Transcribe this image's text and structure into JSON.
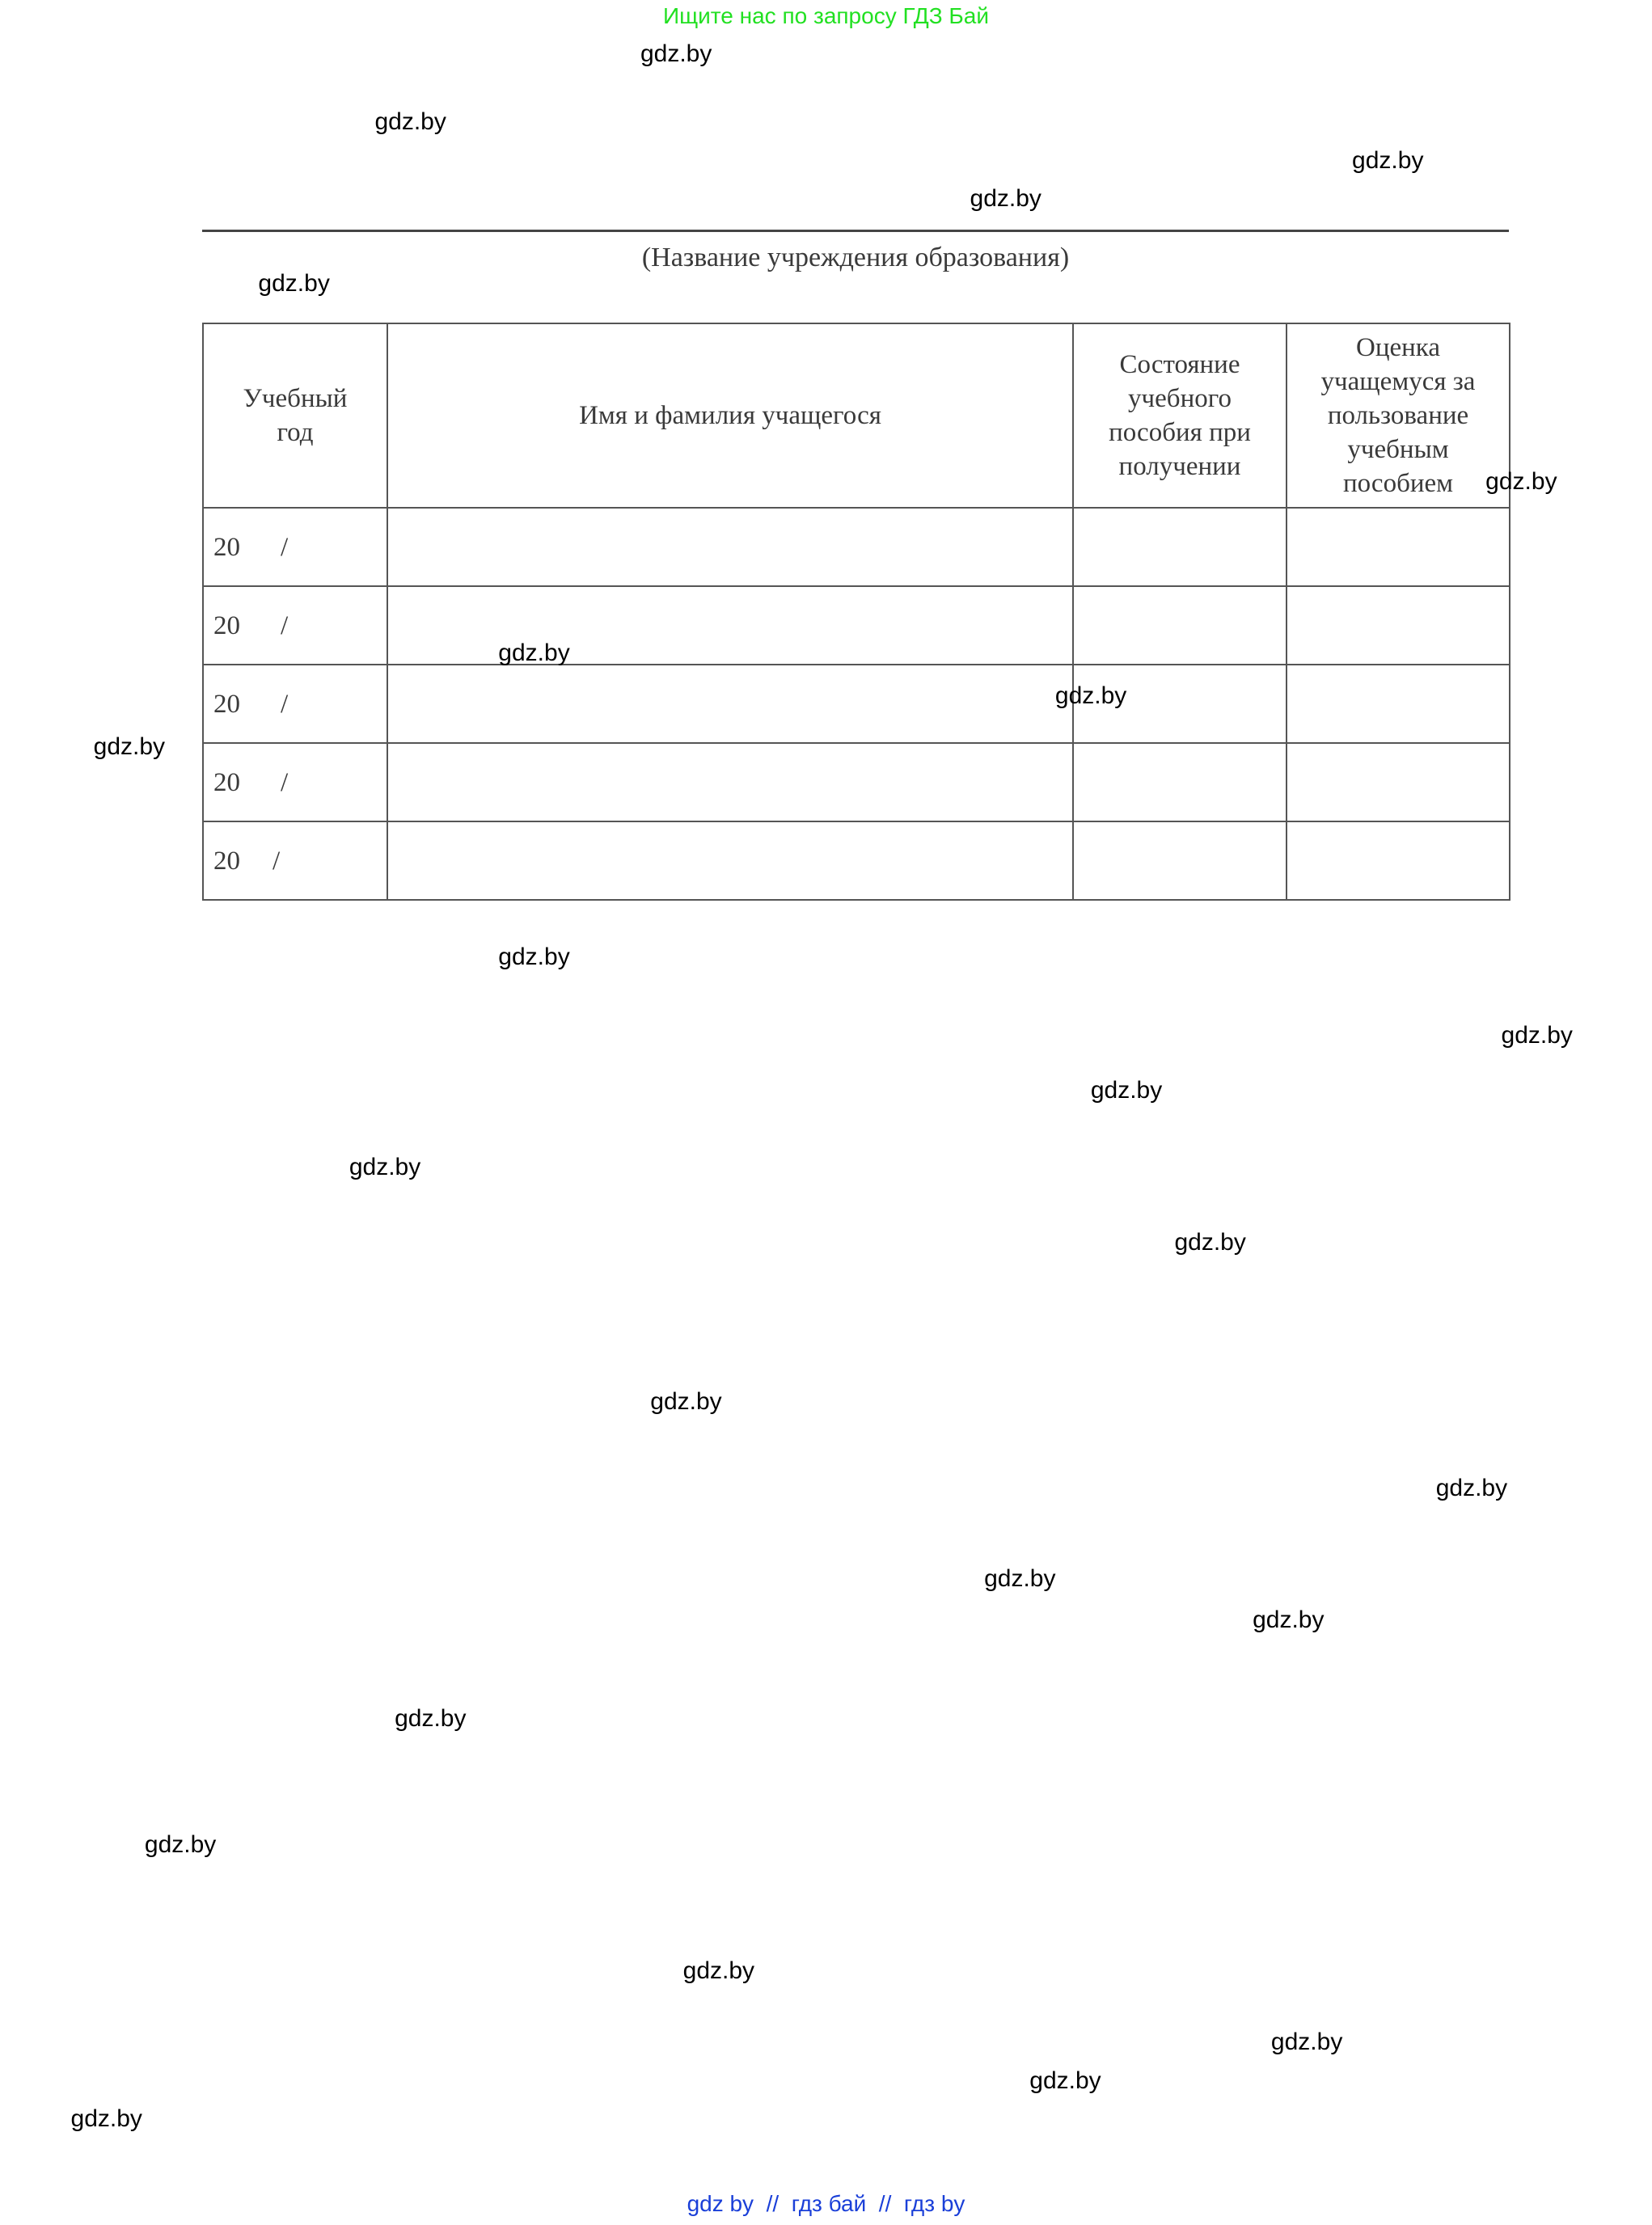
{
  "banner": "Ищите нас по запросу ГДЗ Бай",
  "caption": "(Название учреждения образования)",
  "table": {
    "headers": [
      "Учебный год",
      "Имя и фамилия учащегося",
      "Состояние учебного пособия при получении",
      "Оценка учащемуся за пользование учебным пособием"
    ],
    "rows": [
      {
        "year": "20",
        "slash": "/"
      },
      {
        "year": "20",
        "slash": "/"
      },
      {
        "year": "20",
        "slash": "/"
      },
      {
        "year": "20",
        "slash": "/"
      },
      {
        "year": "20",
        "slash": "/"
      }
    ]
  },
  "watermark": "gdz.by",
  "footer": "gdz by  //  гдз бай  //  гдз by"
}
